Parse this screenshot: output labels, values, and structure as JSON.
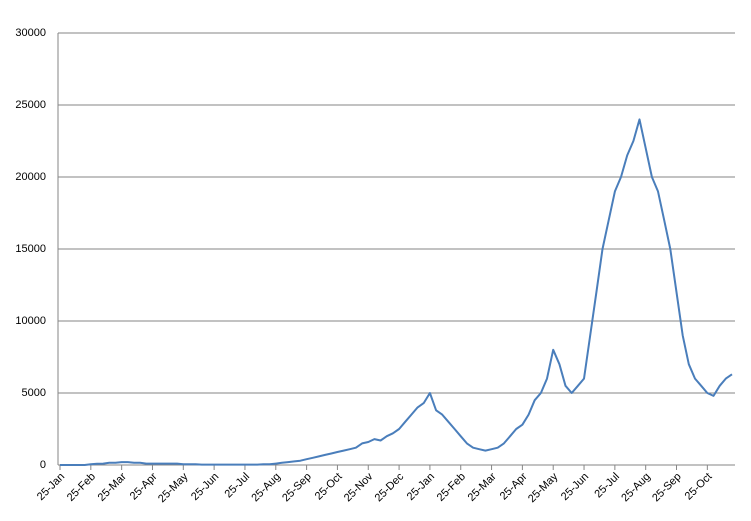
{
  "chart_data": {
    "type": "line",
    "categories": [
      "25-Jan",
      null,
      null,
      null,
      null,
      "25-Feb",
      null,
      null,
      null,
      null,
      "25-Mar",
      null,
      null,
      null,
      null,
      "25-Apr",
      null,
      null,
      null,
      null,
      "25-May",
      null,
      null,
      null,
      null,
      "25-Jun",
      null,
      null,
      null,
      null,
      "25-Jul",
      null,
      null,
      null,
      null,
      "25-Aug",
      null,
      null,
      null,
      null,
      "25-Sep",
      null,
      null,
      null,
      null,
      "25-Oct",
      null,
      null,
      null,
      null,
      "25-Nov",
      null,
      null,
      null,
      null,
      "25-Dec",
      null,
      null,
      null,
      null,
      "25-Jan",
      null,
      null,
      null,
      null,
      "25-Feb",
      null,
      null,
      null,
      null,
      "25-Mar",
      null,
      null,
      null,
      null,
      "25-Apr",
      null,
      null,
      null,
      null,
      "25-May",
      null,
      null,
      null,
      null,
      "25-Jun",
      null,
      null,
      null,
      null,
      "25-Jul",
      null,
      null,
      null,
      null,
      "25-Aug",
      null,
      null,
      null,
      null,
      "25-Sep",
      null,
      null,
      null,
      null,
      "25-Oct",
      null,
      null,
      null,
      null
    ],
    "values": [
      0,
      0,
      0,
      0,
      0,
      50,
      80,
      100,
      150,
      150,
      200,
      200,
      150,
      150,
      100,
      100,
      100,
      100,
      100,
      100,
      50,
      50,
      50,
      30,
      30,
      30,
      30,
      30,
      30,
      30,
      30,
      30,
      30,
      50,
      50,
      100,
      150,
      200,
      250,
      300,
      400,
      500,
      600,
      700,
      800,
      900,
      1000,
      1100,
      1200,
      1500,
      1600,
      1800,
      1700,
      2000,
      2200,
      2500,
      3000,
      3500,
      4000,
      4300,
      5000,
      3800,
      3500,
      3000,
      2500,
      2000,
      1500,
      1200,
      1100,
      1000,
      1100,
      1200,
      1500,
      2000,
      2500,
      2800,
      3500,
      4500,
      5000,
      6000,
      8000,
      7000,
      5500,
      5000,
      5500,
      6000,
      9000,
      12000,
      15000,
      17000,
      19000,
      20000,
      21500,
      22500,
      24000,
      22000,
      20000,
      19000,
      17000,
      15000,
      12000,
      9000,
      7000,
      6000,
      5500,
      5000,
      4800,
      5500,
      6000,
      6300
    ],
    "color": "#4a7ebb",
    "ylim": [
      0,
      30000
    ],
    "yticks": [
      0,
      5000,
      10000,
      15000,
      20000,
      25000,
      30000
    ],
    "grid": true
  }
}
